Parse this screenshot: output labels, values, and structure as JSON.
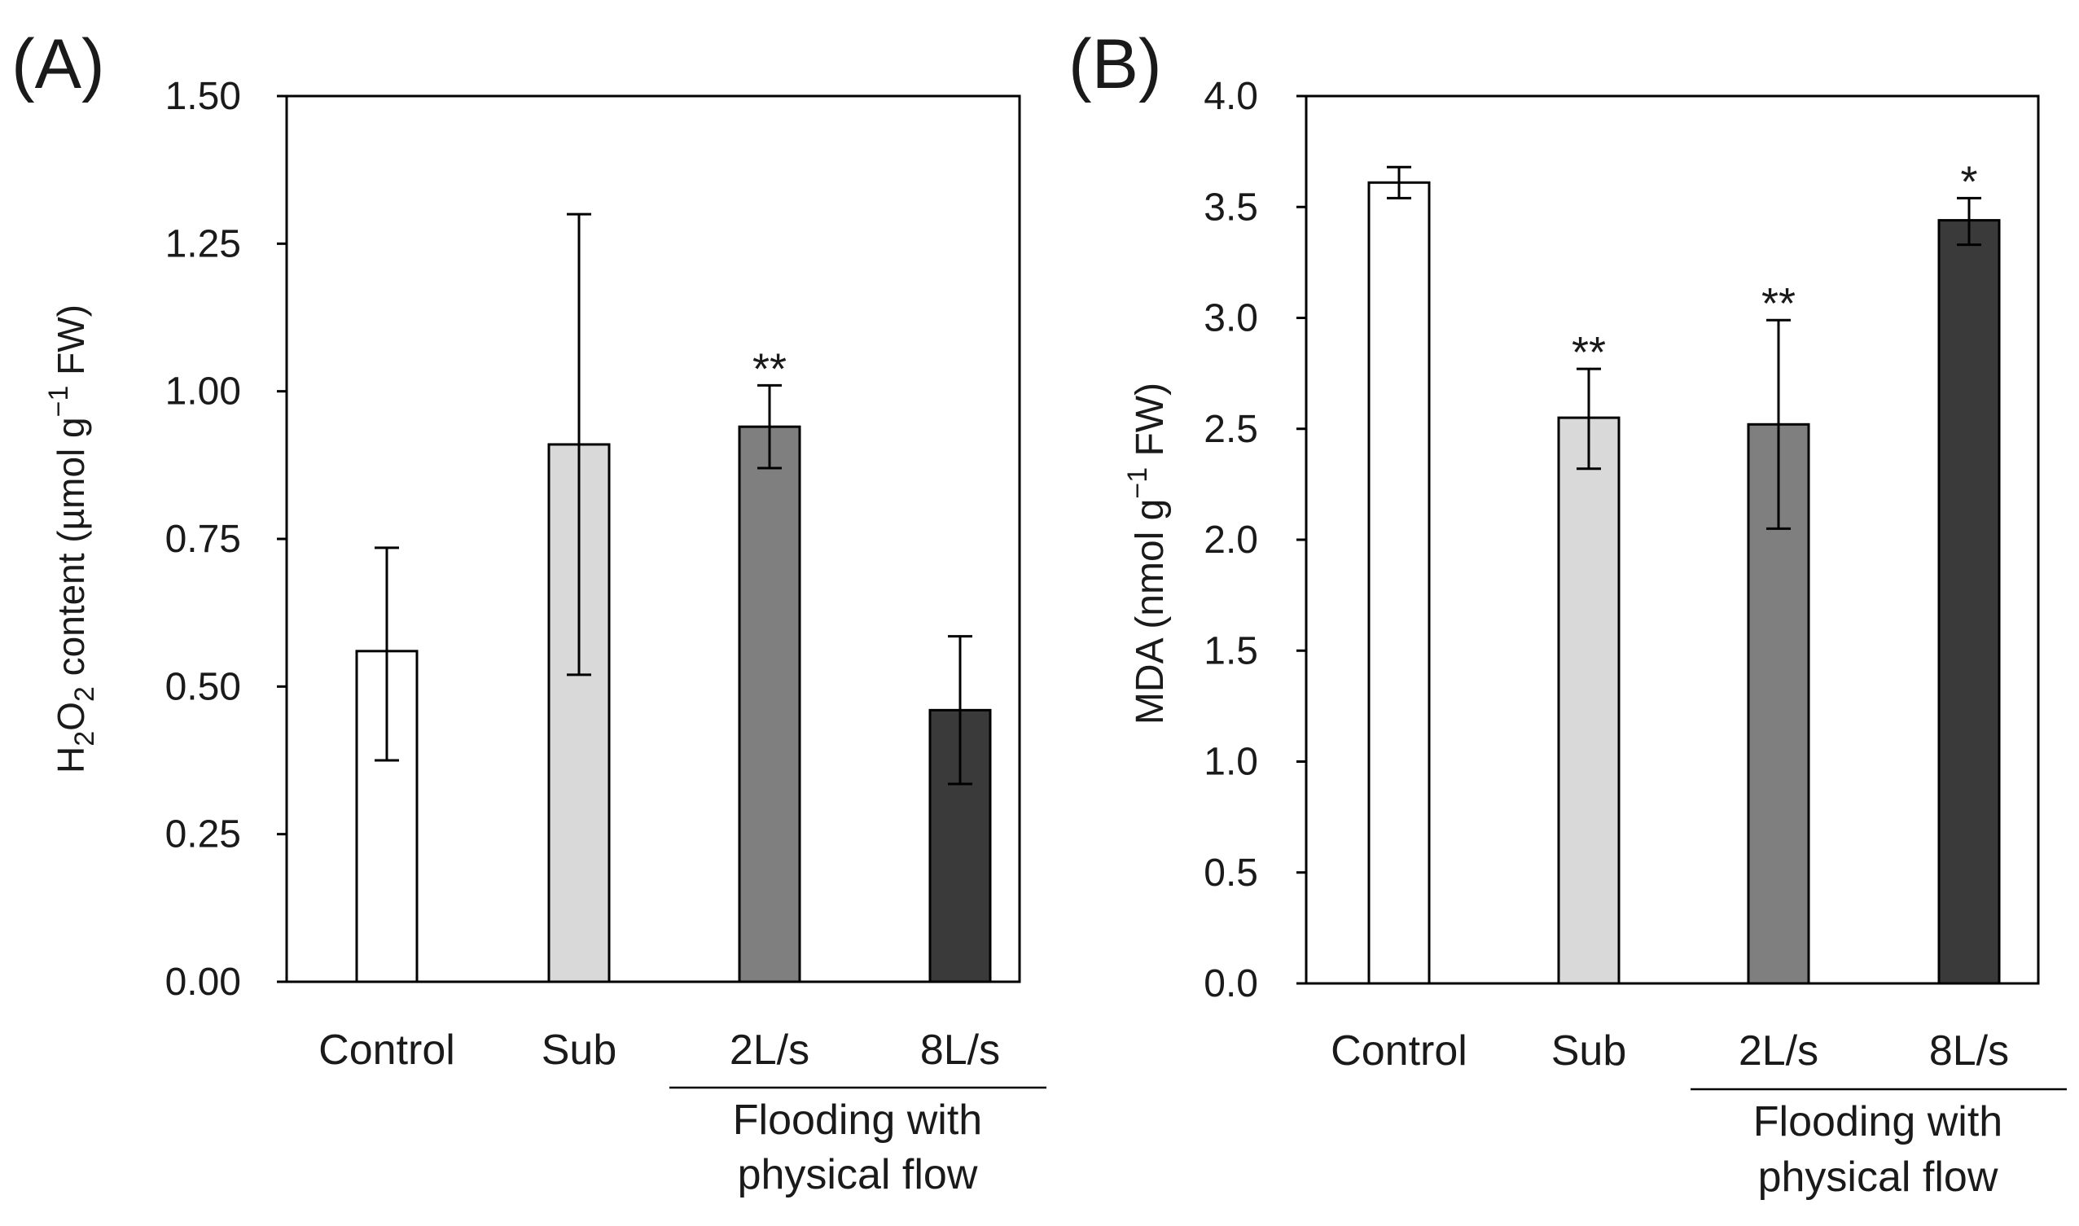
{
  "chart_data": [
    {
      "panel_label": "(A)",
      "type": "bar",
      "categories": [
        "Control",
        "Sub",
        "2L/s",
        "8L/s"
      ],
      "values": [
        0.56,
        0.91,
        0.94,
        0.46
      ],
      "errors": [
        [
          0.375,
          0.735
        ],
        [
          0.52,
          1.3
        ],
        [
          0.87,
          1.01
        ],
        [
          0.335,
          0.585
        ]
      ],
      "significance": [
        "",
        "",
        "**",
        ""
      ],
      "colors": [
        "#ffffff",
        "#d9d9d9",
        "#7f7f7f",
        "#3a3a3a"
      ],
      "ylabel_parts": [
        "H",
        "2",
        "O",
        "2",
        " content (µmol g",
        "−1",
        " FW)"
      ],
      "ylim": [
        0,
        1.5
      ],
      "yticks": [
        "0.00",
        "0.25",
        "0.50",
        "0.75",
        "1.00",
        "1.25",
        "1.50"
      ],
      "group_label_line1": "Flooding with",
      "group_label_line2": "physical flow",
      "grid": false
    },
    {
      "panel_label": "(B)",
      "type": "bar",
      "categories": [
        "Control",
        "Sub",
        "2L/s",
        "8L/s"
      ],
      "values": [
        3.61,
        2.55,
        2.52,
        3.44
      ],
      "errors": [
        [
          3.54,
          3.68
        ],
        [
          2.32,
          2.77
        ],
        [
          2.05,
          2.99
        ],
        [
          3.33,
          3.54
        ]
      ],
      "significance": [
        "",
        "**",
        "**",
        "*"
      ],
      "colors": [
        "#ffffff",
        "#d9d9d9",
        "#7f7f7f",
        "#3a3a3a"
      ],
      "ylabel_parts": [
        "MDA (nmol g",
        "−1",
        " FW)"
      ],
      "ylim": [
        0,
        4.0
      ],
      "yticks": [
        "0.0",
        "0.5",
        "1.0",
        "1.5",
        "2.0",
        "2.5",
        "3.0",
        "3.5",
        "4.0"
      ],
      "group_label_line1": "Flooding with",
      "group_label_line2": "physical flow",
      "grid": false
    }
  ]
}
